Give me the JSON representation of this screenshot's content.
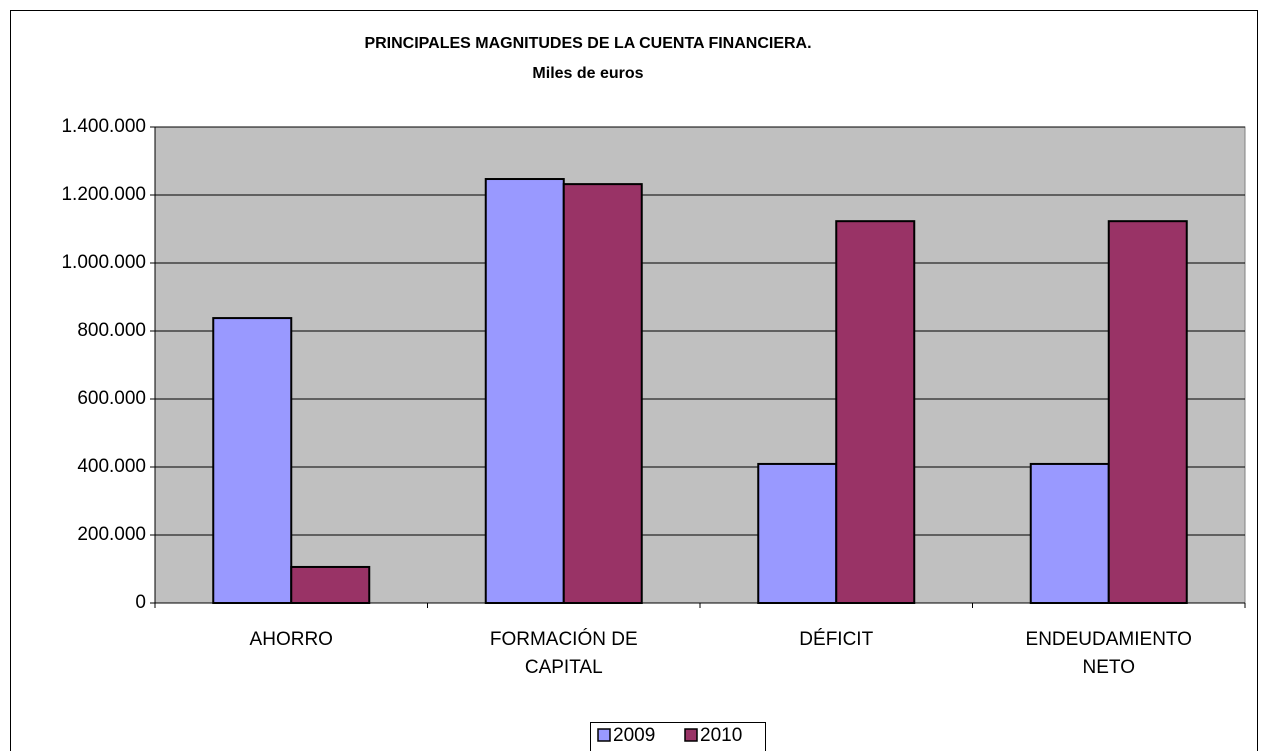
{
  "chart_data": {
    "type": "bar",
    "title": "PRINCIPALES MAGNITUDES DE LA CUENTA FINANCIERA.",
    "subtitle": "Miles de euros",
    "categories": [
      "AHORRO",
      "FORMACIÓN DE CAPITAL",
      "DÉFICIT",
      "ENDEUDAMIENTO NETO"
    ],
    "series": [
      {
        "name": "2009",
        "color": "#9999ff",
        "values": [
          838000,
          1247000,
          409000,
          409000
        ]
      },
      {
        "name": "2010",
        "color": "#993366",
        "values": [
          106000,
          1232000,
          1123000,
          1123000
        ]
      }
    ],
    "ylim": [
      0,
      1400000
    ],
    "yticks": [
      0,
      {
        "value": 200000,
        "label": "200.000"
      },
      {
        "value": 400000,
        "label": "400.000"
      },
      {
        "value": 600000,
        "label": "600.000"
      },
      {
        "value": 800000,
        "label": "800.000"
      },
      {
        "value": 1000000,
        "label": "1.000.000"
      },
      {
        "value": 1200000,
        "label": "1.200.000"
      },
      {
        "value": 1400000,
        "label": "1.400.000"
      }
    ],
    "grid": true,
    "legend": "bottom",
    "plot_background": "#c0c0c0"
  }
}
